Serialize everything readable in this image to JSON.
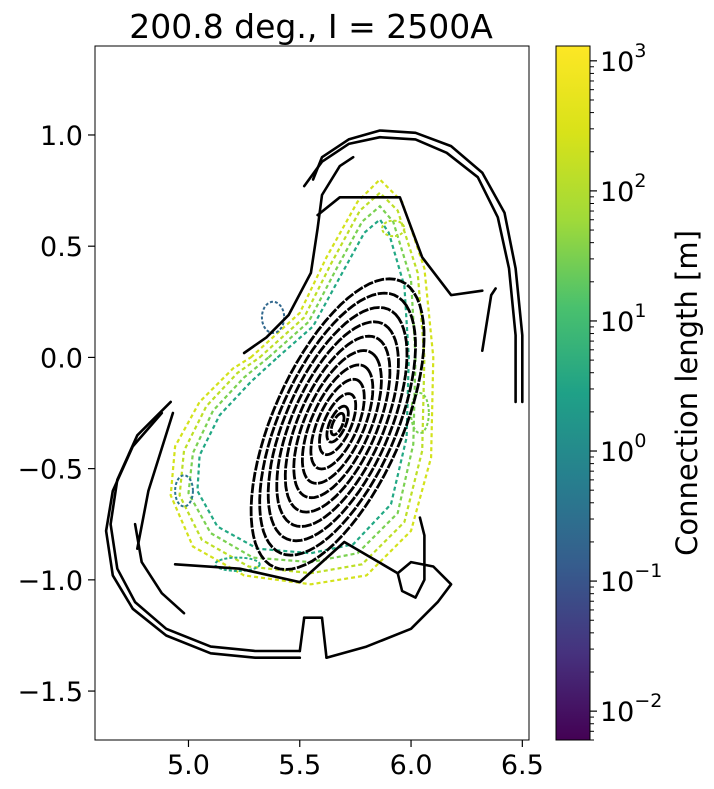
{
  "chart_data": {
    "type": "scatter",
    "title": "200.8 deg., I = 2500A",
    "xlim": [
      4.58,
      6.53
    ],
    "ylim": [
      -1.72,
      1.4
    ],
    "x_ticks": [
      {
        "value": 5.0,
        "label": "5.0"
      },
      {
        "value": 5.5,
        "label": "5.5"
      },
      {
        "value": 6.0,
        "label": "6.0"
      },
      {
        "value": 6.5,
        "label": "6.5"
      }
    ],
    "y_ticks": [
      {
        "value": 1.0,
        "label": "1.0"
      },
      {
        "value": 0.5,
        "label": "0.5"
      },
      {
        "value": 0.0,
        "label": "0.0"
      },
      {
        "value": -0.5,
        "label": "−0.5"
      },
      {
        "value": -1.0,
        "label": "−1.0"
      },
      {
        "value": -1.5,
        "label": "−1.5"
      }
    ],
    "colorbar": {
      "label": "Connection length [m]",
      "scale": "log",
      "colormap": "viridis",
      "range": [
        0.006,
        1300
      ],
      "ticks": [
        {
          "value": 0.01,
          "base": "10",
          "exp": "−2"
        },
        {
          "value": 0.1,
          "base": "10",
          "exp": "−1"
        },
        {
          "value": 1,
          "base": "10",
          "exp": "0"
        },
        {
          "value": 10,
          "base": "10",
          "exp": "1"
        },
        {
          "value": 100,
          "base": "10",
          "exp": "2"
        },
        {
          "value": 1000,
          "base": "10",
          "exp": "3"
        }
      ]
    },
    "core_surfaces": {
      "color": "#000000",
      "center": [
        5.67,
        -0.3
      ],
      "tilt_deg": 47,
      "semi_axes": [
        [
          0.06,
          0.03
        ],
        [
          0.1,
          0.05
        ],
        [
          0.17,
          0.085
        ],
        [
          0.25,
          0.125
        ],
        [
          0.33,
          0.165
        ],
        [
          0.41,
          0.205
        ],
        [
          0.49,
          0.245
        ],
        [
          0.57,
          0.285
        ],
        [
          0.65,
          0.325
        ],
        [
          0.73,
          0.365
        ],
        [
          0.81,
          0.405
        ]
      ]
    },
    "edge_region": {
      "colors": [
        "#d3e21b",
        "#bddf26",
        "#7ad151",
        "#22a884",
        "#2a788e",
        "#31688e"
      ],
      "contours": [
        [
          [
            5.28,
            0.0
          ],
          [
            5.5,
            0.2
          ],
          [
            5.62,
            0.45
          ],
          [
            5.76,
            0.7
          ],
          [
            5.86,
            0.8
          ],
          [
            5.96,
            0.7
          ],
          [
            6.06,
            0.4
          ],
          [
            6.1,
            0.0
          ],
          [
            6.09,
            -0.45
          ],
          [
            6.0,
            -0.78
          ],
          [
            5.8,
            -0.98
          ],
          [
            5.55,
            -1.02
          ],
          [
            5.25,
            -0.98
          ],
          [
            5.02,
            -0.85
          ],
          [
            4.92,
            -0.62
          ],
          [
            4.94,
            -0.4
          ],
          [
            5.05,
            -0.2
          ],
          [
            5.2,
            -0.05
          ]
        ],
        [
          [
            5.32,
            0.0
          ],
          [
            5.52,
            0.18
          ],
          [
            5.64,
            0.42
          ],
          [
            5.77,
            0.66
          ],
          [
            5.86,
            0.74
          ],
          [
            5.94,
            0.66
          ],
          [
            6.03,
            0.38
          ],
          [
            6.06,
            0.0
          ],
          [
            6.05,
            -0.42
          ],
          [
            5.97,
            -0.74
          ],
          [
            5.78,
            -0.93
          ],
          [
            5.55,
            -0.97
          ],
          [
            5.27,
            -0.94
          ],
          [
            5.06,
            -0.82
          ],
          [
            4.96,
            -0.62
          ],
          [
            4.98,
            -0.42
          ],
          [
            5.08,
            -0.22
          ],
          [
            5.22,
            -0.07
          ]
        ],
        [
          [
            5.36,
            0.0
          ],
          [
            5.54,
            0.16
          ],
          [
            5.66,
            0.39
          ],
          [
            5.78,
            0.61
          ],
          [
            5.86,
            0.68
          ],
          [
            5.92,
            0.61
          ],
          [
            6.0,
            0.35
          ],
          [
            6.02,
            0.0
          ],
          [
            6.01,
            -0.39
          ],
          [
            5.94,
            -0.7
          ],
          [
            5.76,
            -0.88
          ],
          [
            5.55,
            -0.92
          ],
          [
            5.29,
            -0.9
          ],
          [
            5.1,
            -0.79
          ],
          [
            5.0,
            -0.61
          ],
          [
            5.02,
            -0.43
          ],
          [
            5.11,
            -0.24
          ],
          [
            5.25,
            -0.09
          ]
        ],
        [
          [
            5.4,
            0.0
          ],
          [
            5.56,
            0.14
          ],
          [
            5.68,
            0.36
          ],
          [
            5.79,
            0.56
          ],
          [
            5.86,
            0.62
          ],
          [
            5.9,
            0.56
          ],
          [
            5.97,
            0.32
          ],
          [
            5.99,
            0.0
          ],
          [
            5.98,
            -0.36
          ],
          [
            5.91,
            -0.66
          ],
          [
            5.74,
            -0.84
          ],
          [
            5.55,
            -0.88
          ],
          [
            5.31,
            -0.86
          ],
          [
            5.13,
            -0.76
          ],
          [
            5.04,
            -0.6
          ],
          [
            5.05,
            -0.44
          ],
          [
            5.14,
            -0.26
          ],
          [
            5.28,
            -0.11
          ]
        ]
      ],
      "islands": [
        [
          5.92,
          0.58,
          0.05,
          0.035
        ],
        [
          6.04,
          -0.25,
          0.04,
          0.09
        ],
        [
          5.22,
          -0.93,
          0.1,
          0.03
        ],
        [
          4.98,
          -0.6,
          0.04,
          0.07
        ],
        [
          5.38,
          0.18,
          0.05,
          0.07
        ]
      ]
    },
    "wall_structures": [
      [
        [
          5.56,
          0.8
        ],
        [
          5.6,
          0.9
        ],
        [
          5.72,
          0.98
        ],
        [
          5.86,
          1.02
        ],
        [
          6.02,
          1.01
        ],
        [
          6.18,
          0.95
        ],
        [
          6.32,
          0.83
        ],
        [
          6.42,
          0.65
        ],
        [
          6.47,
          0.4
        ],
        [
          6.5,
          0.1
        ],
        [
          6.5,
          -0.2
        ]
      ],
      [
        [
          5.52,
          0.77
        ],
        [
          5.6,
          0.88
        ],
        [
          5.72,
          0.96
        ],
        [
          5.86,
          0.99
        ],
        [
          6.02,
          0.98
        ],
        [
          6.16,
          0.92
        ],
        [
          6.3,
          0.81
        ],
        [
          6.39,
          0.63
        ],
        [
          6.44,
          0.4
        ],
        [
          6.47,
          0.1
        ],
        [
          6.47,
          -0.2
        ]
      ],
      [
        [
          5.25,
          0.02
        ],
        [
          5.35,
          0.09
        ],
        [
          5.45,
          0.19
        ],
        [
          5.55,
          0.38
        ],
        [
          5.58,
          0.58
        ],
        [
          5.6,
          0.73
        ],
        [
          5.68,
          0.86
        ],
        [
          5.74,
          0.9
        ]
      ],
      [
        [
          5.8,
          0.72
        ],
        [
          5.95,
          0.72
        ],
        [
          6.05,
          0.45
        ],
        [
          6.18,
          0.28
        ],
        [
          6.32,
          0.3
        ]
      ],
      [
        [
          6.32,
          0.03
        ],
        [
          6.36,
          0.28
        ],
        [
          6.38,
          0.31
        ]
      ],
      [
        [
          5.58,
          0.64
        ],
        [
          5.68,
          0.72
        ],
        [
          5.8,
          0.72
        ]
      ],
      [
        [
          4.93,
          -0.25
        ],
        [
          4.82,
          -0.6
        ],
        [
          4.77,
          -0.86
        ]
      ],
      [
        [
          4.76,
          -0.75
        ],
        [
          4.79,
          -0.92
        ],
        [
          4.88,
          -1.06
        ],
        [
          4.98,
          -1.15
        ]
      ],
      [
        [
          4.92,
          -0.2
        ],
        [
          4.77,
          -0.35
        ],
        [
          4.68,
          -0.55
        ],
        [
          4.65,
          -0.75
        ],
        [
          4.68,
          -0.95
        ],
        [
          4.76,
          -1.1
        ],
        [
          4.9,
          -1.22
        ],
        [
          5.1,
          -1.3
        ],
        [
          5.3,
          -1.32
        ],
        [
          5.5,
          -1.32
        ]
      ],
      [
        [
          4.88,
          -0.25
        ],
        [
          4.75,
          -0.4
        ],
        [
          4.66,
          -0.6
        ],
        [
          4.63,
          -0.78
        ],
        [
          4.66,
          -0.98
        ],
        [
          4.75,
          -1.13
        ],
        [
          4.9,
          -1.25
        ],
        [
          5.1,
          -1.33
        ],
        [
          5.3,
          -1.35
        ],
        [
          5.5,
          -1.35
        ]
      ],
      [
        [
          4.94,
          -0.93
        ],
        [
          5.23,
          -0.95
        ],
        [
          5.5,
          -1.01
        ],
        [
          5.7,
          -0.83
        ],
        [
          5.94,
          -0.97
        ]
      ],
      [
        [
          5.52,
          -1.17
        ],
        [
          5.6,
          -1.17
        ],
        [
          5.62,
          -1.35
        ]
      ],
      [
        [
          5.62,
          -1.35
        ],
        [
          5.8,
          -1.3
        ],
        [
          6.0,
          -1.22
        ],
        [
          6.12,
          -1.1
        ],
        [
          6.18,
          -1.02
        ],
        [
          6.1,
          -0.94
        ],
        [
          6.0,
          -0.92
        ],
        [
          5.94,
          -0.97
        ],
        [
          5.96,
          -1.05
        ],
        [
          6.02,
          -1.08
        ],
        [
          6.06,
          -1.0
        ],
        [
          6.06,
          -0.8
        ],
        [
          6.04,
          -0.72
        ]
      ],
      [
        [
          5.5,
          -1.32
        ],
        [
          5.52,
          -1.17
        ]
      ]
    ]
  }
}
